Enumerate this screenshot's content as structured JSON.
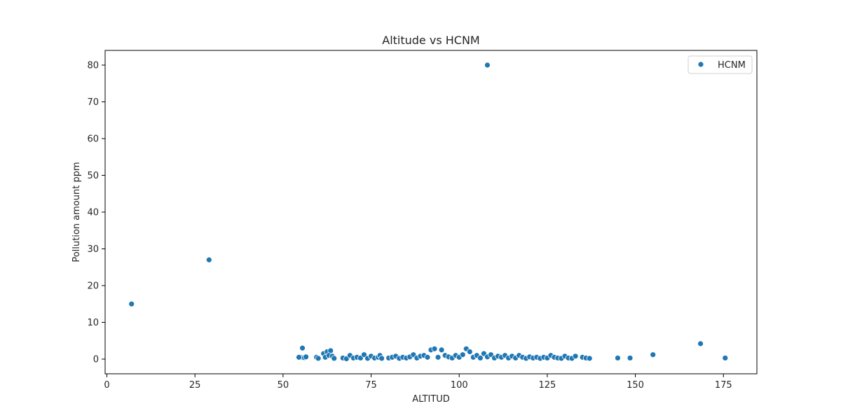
{
  "chart_data": {
    "type": "scatter",
    "title": "Altitude vs HCNM",
    "xlabel": "ALTITUD",
    "ylabel": "Pollution amount ppm",
    "xlim": [
      -0.5,
      184.5
    ],
    "ylim": [
      -4,
      84
    ],
    "xticks": [
      0,
      25,
      50,
      75,
      100,
      125,
      150,
      175
    ],
    "yticks": [
      0,
      10,
      20,
      30,
      40,
      50,
      60,
      70,
      80
    ],
    "grid": false,
    "legend_position": "top-right",
    "series": [
      {
        "name": "HCNM",
        "color": "#1f77b4",
        "points": [
          [
            7,
            15
          ],
          [
            29,
            27
          ],
          [
            108,
            80
          ],
          [
            55,
            0.5
          ],
          [
            55.5,
            3
          ],
          [
            56,
            0.4
          ],
          [
            56.5,
            0.6
          ],
          [
            54.5,
            0.5
          ],
          [
            59.5,
            0.5
          ],
          [
            60,
            0.2
          ],
          [
            61.5,
            1.5
          ],
          [
            62.5,
            2
          ],
          [
            63.5,
            2.3
          ],
          [
            62,
            0.5
          ],
          [
            63,
            1
          ],
          [
            64,
            0.8
          ],
          [
            64.5,
            0.2
          ],
          [
            67,
            0.3
          ],
          [
            68,
            0.1
          ],
          [
            69,
            1
          ],
          [
            70,
            0.3
          ],
          [
            71,
            0.5
          ],
          [
            72,
            0.3
          ],
          [
            73,
            1.2
          ],
          [
            74,
            0.2
          ],
          [
            75,
            0.8
          ],
          [
            76,
            0.3
          ],
          [
            77,
            0.5
          ],
          [
            77.5,
            1
          ],
          [
            78,
            0.2
          ],
          [
            80,
            0.3
          ],
          [
            81,
            0.5
          ],
          [
            82,
            0.8
          ],
          [
            83,
            0.2
          ],
          [
            84,
            0.5
          ],
          [
            85,
            0.3
          ],
          [
            86,
            0.6
          ],
          [
            87,
            1.2
          ],
          [
            88,
            0.3
          ],
          [
            89,
            0.8
          ],
          [
            90,
            1
          ],
          [
            91,
            0.5
          ],
          [
            92,
            2.5
          ],
          [
            93,
            2.8
          ],
          [
            94,
            0.5
          ],
          [
            95,
            2.5
          ],
          [
            96,
            1
          ],
          [
            97,
            0.6
          ],
          [
            98,
            0.3
          ],
          [
            99,
            1
          ],
          [
            100,
            0.5
          ],
          [
            101,
            1.2
          ],
          [
            102,
            2.8
          ],
          [
            103,
            2
          ],
          [
            104,
            0.5
          ],
          [
            105,
            1
          ],
          [
            106,
            0.3
          ],
          [
            107,
            1.5
          ],
          [
            108,
            0.6
          ],
          [
            109,
            1.2
          ],
          [
            110,
            0.3
          ],
          [
            111,
            0.8
          ],
          [
            112,
            0.5
          ],
          [
            113,
            1
          ],
          [
            114,
            0.3
          ],
          [
            115,
            0.8
          ],
          [
            116,
            0.3
          ],
          [
            117,
            1
          ],
          [
            118,
            0.5
          ],
          [
            119,
            0.2
          ],
          [
            120,
            0.6
          ],
          [
            121,
            0.3
          ],
          [
            122,
            0.5
          ],
          [
            123,
            0.2
          ],
          [
            124,
            0.5
          ],
          [
            125,
            0.3
          ],
          [
            126,
            1
          ],
          [
            127,
            0.5
          ],
          [
            128,
            0.3
          ],
          [
            129,
            0.2
          ],
          [
            130,
            0.8
          ],
          [
            131,
            0.3
          ],
          [
            132,
            0.2
          ],
          [
            133,
            0.8
          ],
          [
            135,
            0.5
          ],
          [
            136,
            0.3
          ],
          [
            137,
            0.2
          ],
          [
            145,
            0.3
          ],
          [
            148.5,
            0.3
          ],
          [
            155,
            1.2
          ],
          [
            168.5,
            4.2
          ],
          [
            175.5,
            0.3
          ]
        ]
      }
    ]
  }
}
